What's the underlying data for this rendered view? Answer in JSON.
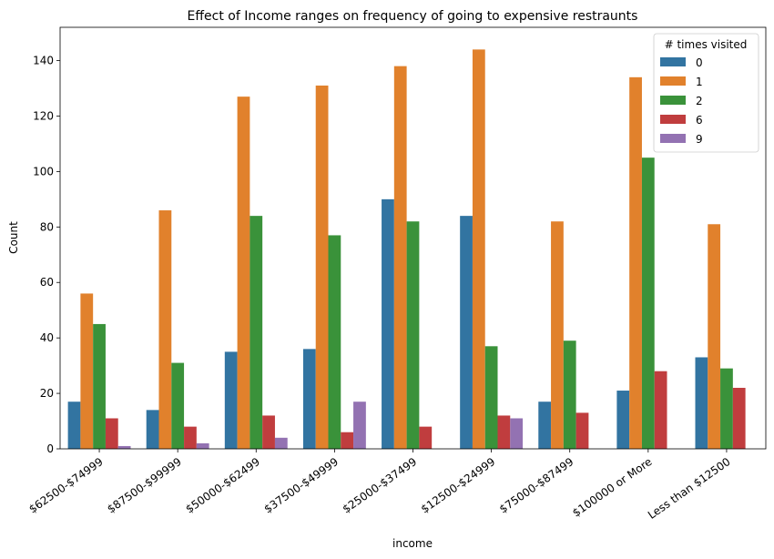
{
  "chart_data": {
    "type": "bar",
    "title": "Effect of Income ranges on frequency of going to expensive restraunts",
    "xlabel": "income",
    "ylabel": "Count",
    "ylim": [
      0,
      152
    ],
    "yticks": [
      0,
      20,
      40,
      60,
      80,
      100,
      120,
      140
    ],
    "grid": false,
    "categories": [
      "$62500 - $74999",
      "$87500 - $99999",
      "$50000 - $62499",
      "$37500 - $49999",
      "$25000 - $37499",
      "$12500 - $24999",
      "$75000 - $87499",
      "$100000 or More",
      "Less than $12500"
    ],
    "category_display": [
      "$62500-$74999",
      "$87500-$99999",
      "$50000-$62499",
      "$37500-$49999",
      "$25000-$37499",
      "$12500-$24999",
      "$75000-$87499",
      "$100000 or More",
      "Less than $12500"
    ],
    "legend": {
      "title": "# times visited",
      "position": "top-right"
    },
    "series": [
      {
        "name": "0",
        "color": "#3274a1",
        "values": [
          17,
          14,
          35,
          36,
          90,
          84,
          17,
          21,
          33
        ]
      },
      {
        "name": "1",
        "color": "#e1812c",
        "values": [
          56,
          86,
          127,
          131,
          138,
          144,
          82,
          134,
          81
        ]
      },
      {
        "name": "2",
        "color": "#3a923a",
        "values": [
          45,
          31,
          84,
          77,
          82,
          37,
          39,
          105,
          29
        ]
      },
      {
        "name": "6",
        "color": "#c03d3e",
        "values": [
          11,
          8,
          12,
          6,
          8,
          12,
          13,
          28,
          22
        ]
      },
      {
        "name": "9",
        "color": "#9372b2",
        "values": [
          1,
          2,
          4,
          17,
          0,
          11,
          0,
          0,
          0
        ]
      }
    ]
  }
}
